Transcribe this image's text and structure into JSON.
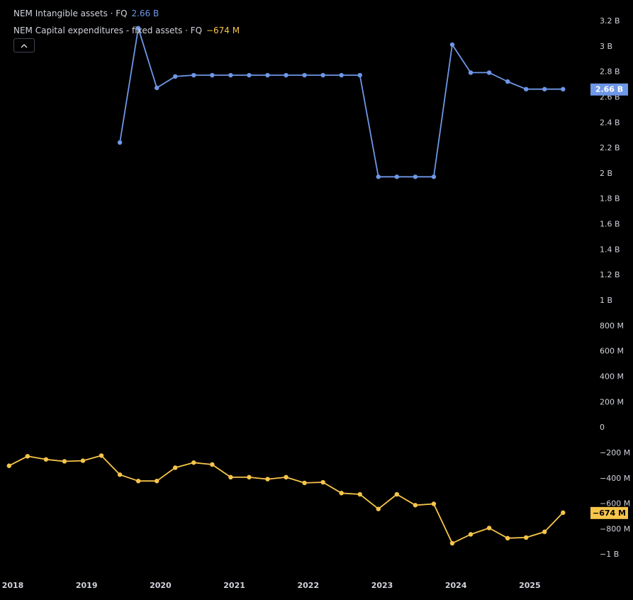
{
  "legend": {
    "series1_label": "NEM Intangible assets · FQ",
    "series1_value": "2.66 B",
    "series2_label": "NEM Capital expenditures - fixed assets · FQ",
    "series2_value": "−674 M"
  },
  "collapse_icon": "chevron-up-icon",
  "colors": {
    "series1": "#6e97e8",
    "series2": "#f7c54a",
    "background": "#000000",
    "text": "#d1d4dc"
  },
  "chart_data": {
    "type": "line",
    "x_ticks": [
      "2018",
      "2019",
      "2020",
      "2021",
      "2022",
      "2023",
      "2024",
      "2025"
    ],
    "y_ticks": [
      "3.2 B",
      "3 B",
      "2.8 B",
      "2.6 B",
      "2.4 B",
      "2.2 B",
      "2 B",
      "1.8 B",
      "1.6 B",
      "1.4 B",
      "1.2 B",
      "1 B",
      "800 M",
      "600 M",
      "400 M",
      "200 M",
      "0",
      "−200 M",
      "−400 M",
      "−600 M",
      "−800 M",
      "−1 B"
    ],
    "y_tick_values": [
      3.2,
      3.0,
      2.8,
      2.6,
      2.4,
      2.2,
      2.0,
      1.8,
      1.6,
      1.4,
      1.2,
      1.0,
      0.8,
      0.6,
      0.4,
      0.2,
      0,
      -0.2,
      -0.4,
      -0.6,
      -0.8,
      -1.0
    ],
    "ylim": [
      -1.1,
      3.3
    ],
    "y_unit": "B",
    "grid": false,
    "series": [
      {
        "name": "NEM Intangible assets · FQ",
        "color": "#6e97e8",
        "last_label": "2.66 B",
        "points": [
          {
            "x": 2019.45,
            "y": 2.24
          },
          {
            "x": 2019.7,
            "y": 3.14
          },
          {
            "x": 2019.95,
            "y": 2.67
          },
          {
            "x": 2020.2,
            "y": 2.76
          },
          {
            "x": 2020.45,
            "y": 2.77
          },
          {
            "x": 2020.7,
            "y": 2.77
          },
          {
            "x": 2020.95,
            "y": 2.77
          },
          {
            "x": 2021.2,
            "y": 2.77
          },
          {
            "x": 2021.45,
            "y": 2.77
          },
          {
            "x": 2021.7,
            "y": 2.77
          },
          {
            "x": 2021.95,
            "y": 2.77
          },
          {
            "x": 2022.2,
            "y": 2.77
          },
          {
            "x": 2022.45,
            "y": 2.77
          },
          {
            "x": 2022.7,
            "y": 2.77
          },
          {
            "x": 2022.95,
            "y": 1.97
          },
          {
            "x": 2023.2,
            "y": 1.97
          },
          {
            "x": 2023.45,
            "y": 1.97
          },
          {
            "x": 2023.7,
            "y": 1.97
          },
          {
            "x": 2023.95,
            "y": 3.01
          },
          {
            "x": 2024.2,
            "y": 2.79
          },
          {
            "x": 2024.45,
            "y": 2.79
          },
          {
            "x": 2024.7,
            "y": 2.72
          },
          {
            "x": 2024.95,
            "y": 2.66
          },
          {
            "x": 2025.2,
            "y": 2.66
          },
          {
            "x": 2025.45,
            "y": 2.66
          }
        ]
      },
      {
        "name": "NEM Capital expenditures - fixed assets · FQ",
        "color": "#f7c54a",
        "last_label": "−674 M",
        "points": [
          {
            "x": 2017.95,
            "y": -0.305
          },
          {
            "x": 2018.2,
            "y": -0.23
          },
          {
            "x": 2018.45,
            "y": -0.255
          },
          {
            "x": 2018.7,
            "y": -0.27
          },
          {
            "x": 2018.95,
            "y": -0.265
          },
          {
            "x": 2019.2,
            "y": -0.225
          },
          {
            "x": 2019.45,
            "y": -0.375
          },
          {
            "x": 2019.7,
            "y": -0.425
          },
          {
            "x": 2019.95,
            "y": -0.425
          },
          {
            "x": 2020.2,
            "y": -0.32
          },
          {
            "x": 2020.45,
            "y": -0.28
          },
          {
            "x": 2020.7,
            "y": -0.295
          },
          {
            "x": 2020.95,
            "y": -0.395
          },
          {
            "x": 2021.2,
            "y": -0.395
          },
          {
            "x": 2021.45,
            "y": -0.41
          },
          {
            "x": 2021.7,
            "y": -0.395
          },
          {
            "x": 2021.95,
            "y": -0.44
          },
          {
            "x": 2022.2,
            "y": -0.435
          },
          {
            "x": 2022.45,
            "y": -0.52
          },
          {
            "x": 2022.7,
            "y": -0.53
          },
          {
            "x": 2022.95,
            "y": -0.645
          },
          {
            "x": 2023.2,
            "y": -0.53
          },
          {
            "x": 2023.45,
            "y": -0.615
          },
          {
            "x": 2023.7,
            "y": -0.605
          },
          {
            "x": 2023.95,
            "y": -0.915
          },
          {
            "x": 2024.2,
            "y": -0.845
          },
          {
            "x": 2024.45,
            "y": -0.795
          },
          {
            "x": 2024.7,
            "y": -0.875
          },
          {
            "x": 2024.95,
            "y": -0.87
          },
          {
            "x": 2025.2,
            "y": -0.825
          },
          {
            "x": 2025.45,
            "y": -0.674
          }
        ]
      }
    ]
  }
}
